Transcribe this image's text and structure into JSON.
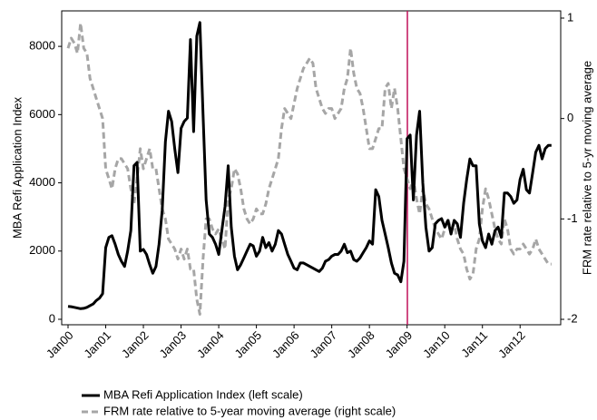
{
  "chart_data": {
    "type": "line",
    "categories": [
      "Jan00",
      null,
      null,
      null,
      null,
      null,
      null,
      null,
      null,
      null,
      null,
      null,
      "Jan01",
      null,
      null,
      null,
      null,
      null,
      null,
      null,
      null,
      null,
      null,
      null,
      "Jan02",
      null,
      null,
      null,
      null,
      null,
      null,
      null,
      null,
      null,
      null,
      null,
      "Jan03",
      null,
      null,
      null,
      null,
      null,
      null,
      null,
      null,
      null,
      null,
      null,
      "Jan04",
      null,
      null,
      null,
      null,
      null,
      null,
      null,
      null,
      null,
      null,
      null,
      "Jan05",
      null,
      null,
      null,
      null,
      null,
      null,
      null,
      null,
      null,
      null,
      null,
      "Jan06",
      null,
      null,
      null,
      null,
      null,
      null,
      null,
      null,
      null,
      null,
      null,
      "Jan07",
      null,
      null,
      null,
      null,
      null,
      null,
      null,
      null,
      null,
      null,
      null,
      "Jan08",
      null,
      null,
      null,
      null,
      null,
      null,
      null,
      null,
      null,
      null,
      null,
      "Jan09",
      null,
      null,
      null,
      null,
      null,
      null,
      null,
      null,
      null,
      null,
      null,
      "Jan10",
      null,
      null,
      null,
      null,
      null,
      null,
      null,
      null,
      null,
      null,
      null,
      "Jan11",
      null,
      null,
      null,
      null,
      null,
      null,
      null,
      null,
      null,
      null,
      null,
      "Jan12",
      null,
      null,
      null,
      null,
      null,
      null,
      null,
      null,
      null,
      null
    ],
    "series": [
      {
        "name": "MBA Refi Application Index (left scale)",
        "color": "#000000",
        "dash": "solid",
        "values": [
          380,
          370,
          350,
          330,
          310,
          320,
          350,
          400,
          450,
          550,
          620,
          750,
          2100,
          2400,
          2450,
          2200,
          1900,
          1700,
          1550,
          2000,
          2600,
          4500,
          4600,
          2000,
          2050,
          1900,
          1600,
          1350,
          1550,
          2200,
          3200,
          5200,
          6100,
          5800,
          5000,
          4300,
          5600,
          5800,
          5900,
          8200,
          5500,
          8300,
          8700,
          6000,
          3500,
          2500,
          2400,
          2200,
          1900,
          2600,
          3300,
          4500,
          2700,
          1850,
          1450,
          1600,
          1800,
          2000,
          2200,
          2150,
          1850,
          2000,
          2400,
          2100,
          2250,
          2000,
          2200,
          2600,
          2500,
          2200,
          1900,
          1700,
          1500,
          1450,
          1650,
          1650,
          1600,
          1550,
          1500,
          1450,
          1400,
          1500,
          1700,
          1750,
          1850,
          1900,
          1900,
          2000,
          2200,
          1950,
          2000,
          1750,
          1700,
          1800,
          1950,
          2100,
          2300,
          2200,
          3800,
          3600,
          2900,
          2500,
          2100,
          1650,
          1350,
          1300,
          1100,
          1700,
          5300,
          5400,
          3500,
          5400,
          6100,
          4000,
          2700,
          2000,
          2100,
          2800,
          2900,
          2950,
          2700,
          2900,
          2500,
          2900,
          2800,
          2400,
          3400,
          4100,
          4700,
          4500,
          4500,
          2800,
          2300,
          2100,
          2500,
          2200,
          2600,
          2700,
          2400,
          3700,
          3700,
          3600,
          3400,
          3500,
          4100,
          4400,
          3800,
          3700,
          4300,
          4900,
          5100,
          4700,
          5000,
          5100,
          5100
        ]
      },
      {
        "name": "FRM rate relative to 5-year moving average (right scale)",
        "color": "#a6a6a6",
        "dash": "dashed",
        "axis": "y2",
        "values": [
          0.7,
          0.8,
          0.75,
          0.65,
          0.95,
          0.7,
          0.65,
          0.4,
          0.3,
          0.2,
          0.1,
          0.0,
          -0.5,
          -0.6,
          -0.7,
          -0.5,
          -0.4,
          -0.4,
          -0.45,
          -0.5,
          -0.7,
          -0.85,
          -0.6,
          -0.3,
          -0.5,
          -0.4,
          -0.3,
          -0.5,
          -0.5,
          -0.7,
          -0.9,
          -1.0,
          -1.2,
          -1.25,
          -1.3,
          -1.4,
          -1.3,
          -1.4,
          -1.3,
          -1.5,
          -1.5,
          -1.8,
          -1.95,
          -1.4,
          -1.0,
          -1.0,
          -1.1,
          -1.15,
          -1.1,
          -1.2,
          -1.3,
          -0.8,
          -0.7,
          -0.5,
          -0.55,
          -0.7,
          -0.9,
          -1.0,
          -1.05,
          -1.0,
          -0.9,
          -0.95,
          -0.95,
          -0.85,
          -0.7,
          -0.6,
          -0.5,
          -0.4,
          -0.1,
          0.1,
          0.05,
          0.0,
          0.15,
          0.3,
          0.4,
          0.5,
          0.55,
          0.6,
          0.55,
          0.3,
          0.2,
          0.1,
          0.05,
          0.1,
          0.1,
          0.0,
          0.05,
          0.1,
          0.3,
          0.4,
          0.7,
          0.45,
          0.3,
          0.25,
          0.1,
          -0.1,
          -0.3,
          -0.3,
          -0.2,
          -0.1,
          -0.1,
          0.3,
          0.35,
          0.1,
          0.3,
          0.1,
          -0.2,
          -0.5,
          -0.6,
          -0.7,
          -0.6,
          -0.8,
          -0.95,
          -0.7,
          -0.85,
          -0.9,
          -1.0,
          -1.1,
          -1.15,
          -1.2,
          -1.1,
          -1.0,
          -1.1,
          -1.05,
          -1.2,
          -1.3,
          -1.35,
          -1.5,
          -1.6,
          -1.55,
          -1.3,
          -1.2,
          -0.9,
          -0.7,
          -0.8,
          -0.95,
          -1.1,
          -1.2,
          -1.25,
          -1.0,
          -1.1,
          -1.3,
          -1.35,
          -1.3,
          -1.3,
          -1.25,
          -1.3,
          -1.35,
          -1.3,
          -1.2,
          -1.3,
          -1.35,
          -1.4,
          -1.45,
          -1.45
        ]
      }
    ],
    "y_label": "MBA Refi Application Index",
    "y2_label": "FRM rate relative to 5-yr moving average",
    "ylim": [
      -160,
      9040
    ],
    "yticks": [
      0,
      2000,
      4000,
      6000,
      8000
    ],
    "y2lim": [
      -2.054,
      1.072
    ],
    "y2ticks": [
      -2,
      -1,
      0,
      1
    ],
    "legend": "bottom"
  }
}
